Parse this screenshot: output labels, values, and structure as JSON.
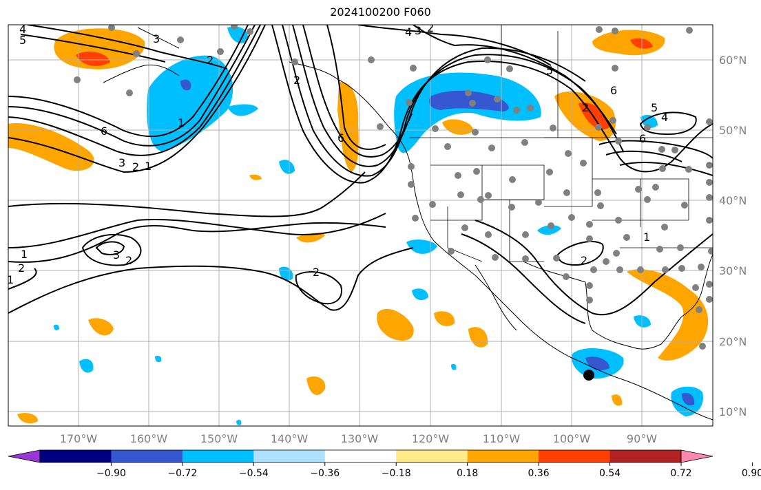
{
  "title": "2024100200 F060",
  "longitude_labels": [
    "170°W",
    "160°W",
    "150°W",
    "140°W",
    "130°W",
    "120°W",
    "110°W",
    "100°W",
    "90°W"
  ],
  "latitude_labels": [
    "60°N",
    "50°N",
    "40°N",
    "30°N",
    "20°N",
    "10°N"
  ],
  "colorbar": {
    "colors": [
      "#9a35d6",
      "#000080",
      "#3557d0",
      "#00bfff",
      "#ade1ff",
      "#ffffff",
      "#ffeb8a",
      "#ffa500",
      "#ff4000",
      "#b22222",
      "#ff88b0"
    ],
    "tick_labels": [
      "−0.90",
      "−0.72",
      "−0.54",
      "−0.36",
      "−0.18",
      "0.18",
      "0.36",
      "0.54",
      "0.72",
      "0.90"
    ]
  },
  "contour_labels": [
    "4",
    "5",
    "3",
    "2",
    "1",
    "6",
    "3",
    "2",
    "1",
    "4",
    "2",
    "3",
    "2",
    "6",
    "5",
    "6",
    "5",
    "4",
    "6",
    "2",
    "1",
    "2",
    "3",
    "2",
    "2",
    "1",
    "1",
    "2"
  ],
  "legend_colors": {
    "positive_main": "#ffa500",
    "positive_strong": "#ff4000",
    "negative_main": "#00bfff",
    "negative_strong": "#3557d0",
    "station": "#808080"
  }
}
